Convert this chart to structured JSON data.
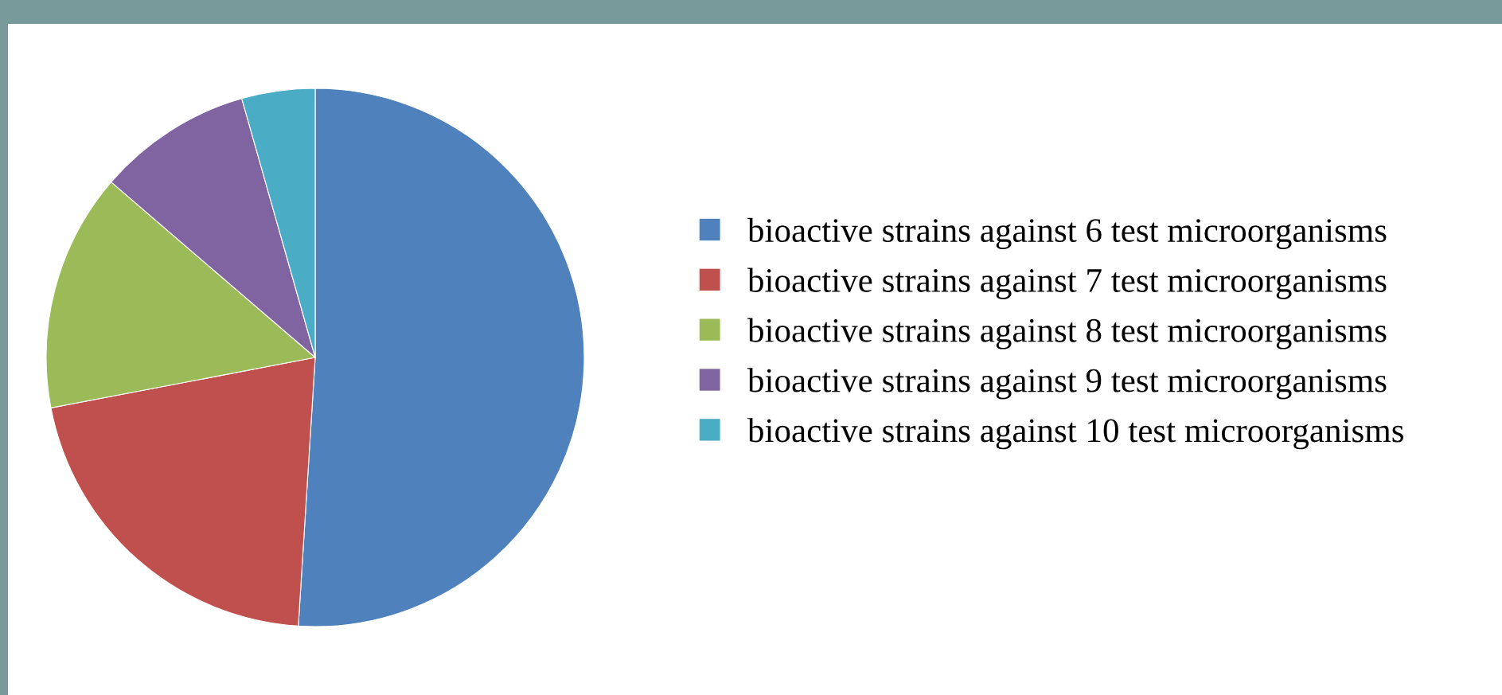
{
  "chart_data": {
    "type": "pie",
    "categories": [
      "bioactive strains against 6 test microorganisms",
      "bioactive strains against 7 test microorganisms",
      "bioactive strains against 8 test microorganisms",
      "bioactive strains against 9 test microorganisms",
      "bioactive strains against 10 test microorganisms"
    ],
    "values": [
      51.0,
      21.0,
      14.3,
      9.3,
      4.4
    ],
    "colors": [
      "#4f81bd",
      "#c0504d",
      "#9bbb59",
      "#8064a2",
      "#4bacc6"
    ],
    "legend": "right"
  }
}
